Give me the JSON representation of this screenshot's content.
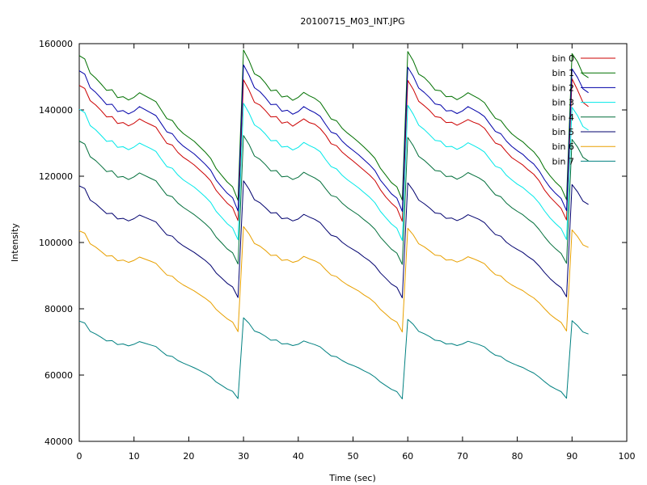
{
  "chart_data": {
    "type": "line",
    "title": "20100715_M03_INT.JPG",
    "xlabel": "Time (sec)",
    "ylabel": "Intensity",
    "xlim": [
      0,
      100
    ],
    "ylim": [
      40000,
      160000
    ],
    "xticks": [
      "0",
      "10",
      "20",
      "30",
      "40",
      "50",
      "60",
      "70",
      "80",
      "90",
      "100"
    ],
    "yticks": [
      "40000",
      "60000",
      "80000",
      "100000",
      "120000",
      "140000",
      "160000"
    ],
    "grid": false,
    "legend_position": "top-right",
    "x": [
      0,
      1,
      2,
      3,
      4,
      5,
      6,
      7,
      8,
      9,
      10,
      11,
      12,
      13,
      14,
      15,
      16,
      17,
      18,
      19,
      20,
      21,
      22,
      23,
      24,
      25,
      26,
      27,
      28,
      29,
      30,
      31,
      32,
      33,
      34,
      35,
      36,
      37,
      38,
      39,
      40,
      41,
      42,
      43,
      44,
      45,
      46,
      47,
      48,
      49,
      50,
      51,
      52,
      53,
      54,
      55,
      56,
      57,
      58,
      59,
      60,
      61,
      62,
      63,
      64,
      65,
      66,
      67,
      68,
      69,
      70,
      71,
      72,
      73,
      74,
      75,
      76,
      77,
      78,
      79,
      80,
      81,
      82,
      83,
      84,
      85,
      86,
      87,
      88,
      89,
      90,
      91,
      92,
      93
    ],
    "series": [
      {
        "name": "bin 0",
        "color": "#cc0000",
        "values": [
          147400,
          146500,
          142800,
          141500,
          139800,
          137900,
          138000,
          135900,
          136200,
          135200,
          136000,
          137300,
          136400,
          135600,
          134800,
          132300,
          129900,
          129400,
          127200,
          125700,
          124600,
          123400,
          121900,
          120400,
          118600,
          115700,
          113800,
          111900,
          110500,
          106600,
          149100,
          146000,
          142300,
          141500,
          139800,
          137900,
          138000,
          136000,
          136400,
          135100,
          136200,
          137300,
          136200,
          135700,
          134400,
          132400,
          129800,
          129200,
          127300,
          125900,
          124600,
          123200,
          121800,
          120400,
          118700,
          115900,
          113700,
          111900,
          110400,
          106400,
          148900,
          146200,
          142600,
          141300,
          139800,
          138000,
          137700,
          136200,
          136300,
          135400,
          136200,
          137100,
          136300,
          135700,
          134500,
          132200,
          130000,
          129400,
          127400,
          125600,
          124500,
          123400,
          121900,
          120600,
          118600,
          115800,
          113700,
          112000,
          110300,
          106800,
          149400,
          146000,
          142300,
          141000
        ]
      },
      {
        "name": "bin 1",
        "color": "#007000",
        "values": [
          156400,
          155400,
          151100,
          149600,
          147800,
          145900,
          146100,
          143700,
          144000,
          143000,
          143800,
          145200,
          144300,
          143400,
          142500,
          139900,
          137400,
          136800,
          134500,
          132900,
          131700,
          130500,
          128900,
          127300,
          125400,
          122300,
          120300,
          118300,
          116800,
          112700,
          158100,
          154900,
          150900,
          150000,
          148100,
          145800,
          146000,
          143900,
          144200,
          142900,
          143800,
          145300,
          144300,
          143500,
          142300,
          139800,
          137300,
          136700,
          134500,
          133000,
          131700,
          130300,
          128800,
          127200,
          125400,
          122400,
          120300,
          118100,
          116800,
          112800,
          157600,
          154800,
          150800,
          149800,
          148100,
          146000,
          145800,
          144000,
          144100,
          143100,
          144000,
          145200,
          144300,
          143400,
          142200,
          139700,
          137500,
          136800,
          134600,
          132800,
          131500,
          130400,
          128800,
          127400,
          125300,
          122300,
          120100,
          118200,
          116600,
          112900,
          157000,
          154500,
          150800,
          149700
        ]
      },
      {
        "name": "bin 2",
        "color": "#0000a8",
        "values": [
          151800,
          150800,
          146700,
          145300,
          143500,
          141600,
          141700,
          139500,
          139800,
          138800,
          139600,
          141000,
          140100,
          139200,
          138300,
          135800,
          133400,
          132800,
          130600,
          129100,
          127900,
          126700,
          125200,
          123600,
          121800,
          118800,
          116800,
          114900,
          113500,
          109500,
          153600,
          150500,
          146700,
          145500,
          143700,
          141600,
          141700,
          139600,
          139900,
          138700,
          139500,
          141000,
          140000,
          139200,
          138100,
          135600,
          133300,
          132700,
          130600,
          129100,
          127800,
          126500,
          125000,
          123500,
          121700,
          118800,
          116800,
          114700,
          113400,
          109400,
          152900,
          150200,
          146600,
          145300,
          143700,
          141800,
          141500,
          139700,
          139800,
          138900,
          139700,
          141000,
          140100,
          139200,
          138000,
          135700,
          133500,
          132800,
          130600,
          129000,
          127700,
          126600,
          125000,
          123700,
          121600,
          118900,
          116600,
          114800,
          113300,
          109600,
          152400,
          149800,
          146400,
          145200
        ]
      },
      {
        "name": "bin 3",
        "color": "#00e8e8",
        "values": [
          140200,
          139200,
          135300,
          134000,
          132300,
          130500,
          130700,
          128700,
          128900,
          128000,
          128800,
          130000,
          129200,
          128400,
          127500,
          125100,
          122900,
          122400,
          120400,
          118900,
          117800,
          116700,
          115300,
          113800,
          112100,
          109400,
          107600,
          105700,
          104400,
          100800,
          142000,
          139100,
          135500,
          134400,
          132700,
          130700,
          130800,
          128800,
          129000,
          127900,
          128700,
          130200,
          129300,
          128500,
          127400,
          125000,
          122900,
          122200,
          120300,
          118900,
          117700,
          116500,
          115100,
          113700,
          112000,
          109400,
          107500,
          105600,
          104300,
          100600,
          141400,
          138700,
          135400,
          134100,
          132500,
          130800,
          130600,
          128900,
          129000,
          128100,
          128900,
          130100,
          129300,
          128400,
          127300,
          125100,
          123000,
          122400,
          120300,
          118900,
          117600,
          116600,
          115200,
          113800,
          111900,
          109500,
          107400,
          105700,
          104200,
          100900,
          140800,
          138300,
          135000,
          133900
        ]
      },
      {
        "name": "bin 4",
        "color": "#006e3a",
        "values": [
          130600,
          129700,
          125900,
          124700,
          123100,
          121400,
          121600,
          119700,
          119900,
          119000,
          119800,
          121000,
          120200,
          119400,
          118600,
          116400,
          114300,
          113800,
          111900,
          110600,
          109500,
          108400,
          107100,
          105700,
          104100,
          101600,
          99900,
          98100,
          96900,
          93500,
          132300,
          129600,
          126100,
          125100,
          123500,
          121600,
          121700,
          119800,
          120000,
          119000,
          119700,
          121200,
          120300,
          119500,
          118400,
          116200,
          114200,
          113700,
          111900,
          110500,
          109400,
          108300,
          106900,
          105600,
          104000,
          101600,
          99800,
          98000,
          96800,
          93400,
          131700,
          129200,
          126000,
          124800,
          123300,
          121700,
          121500,
          119900,
          120000,
          119100,
          119900,
          121100,
          120300,
          119500,
          118400,
          116300,
          114400,
          113800,
          111900,
          110500,
          109400,
          108400,
          107000,
          105800,
          103900,
          101700,
          99700,
          98100,
          96700,
          93700,
          131100,
          128800,
          125700,
          124600
        ]
      },
      {
        "name": "bin 5",
        "color": "#00006e",
        "values": [
          117100,
          116300,
          112800,
          111700,
          110200,
          108700,
          108800,
          107100,
          107300,
          106500,
          107200,
          108300,
          107600,
          106900,
          106200,
          104200,
          102300,
          101900,
          100200,
          99000,
          98000,
          97000,
          95800,
          94600,
          93100,
          90800,
          89300,
          87700,
          86600,
          83400,
          118600,
          116100,
          112900,
          112000,
          110500,
          108900,
          109000,
          107200,
          107400,
          106500,
          107100,
          108500,
          107700,
          107000,
          106000,
          104000,
          102200,
          101700,
          100100,
          98900,
          97900,
          96900,
          95600,
          94500,
          93000,
          90800,
          89200,
          87500,
          86500,
          83300,
          118000,
          115700,
          112800,
          111700,
          110400,
          108900,
          108700,
          107300,
          107400,
          106600,
          107300,
          108400,
          107700,
          107000,
          106000,
          104100,
          102400,
          101900,
          100100,
          98900,
          97900,
          97000,
          95700,
          94600,
          92900,
          90900,
          89100,
          87600,
          86400,
          83600,
          117500,
          115300,
          112500,
          111500
        ]
      },
      {
        "name": "bin 6",
        "color": "#e8a000",
        "values": [
          103500,
          102800,
          99600,
          98600,
          97300,
          95900,
          96000,
          94500,
          94700,
          94000,
          94600,
          95600,
          95000,
          94400,
          93700,
          91900,
          90200,
          89800,
          88300,
          87200,
          86300,
          85400,
          84300,
          83200,
          81900,
          79800,
          78400,
          77000,
          76000,
          73100,
          104800,
          102600,
          99700,
          98900,
          97600,
          96100,
          96200,
          94600,
          94800,
          94000,
          94500,
          95800,
          95100,
          94500,
          93600,
          91800,
          90200,
          89700,
          88300,
          87200,
          86300,
          85400,
          84200,
          83200,
          81800,
          79800,
          78400,
          76900,
          76000,
          73000,
          104300,
          102300,
          99600,
          98700,
          97500,
          96200,
          96000,
          94700,
          94800,
          94100,
          94700,
          95700,
          95100,
          94400,
          93600,
          91800,
          90300,
          89900,
          88300,
          87200,
          86300,
          85500,
          84300,
          83300,
          81800,
          80000,
          78300,
          77000,
          75900,
          73300,
          103800,
          101800,
          99300,
          98500
        ]
      },
      {
        "name": "bin 7",
        "color": "#008080",
        "values": [
          76300,
          75700,
          73200,
          72400,
          71400,
          70300,
          70400,
          69200,
          69400,
          68800,
          69300,
          70100,
          69600,
          69100,
          68600,
          67200,
          65900,
          65600,
          64400,
          63600,
          62900,
          62200,
          61400,
          60500,
          59500,
          57900,
          56900,
          55800,
          55100,
          52900,
          77300,
          75600,
          73300,
          72700,
          71700,
          70500,
          70600,
          69400,
          69500,
          68900,
          69300,
          70300,
          69700,
          69200,
          68500,
          67100,
          65800,
          65500,
          64400,
          63500,
          62900,
          62200,
          61300,
          60500,
          59400,
          57900,
          56800,
          55700,
          55000,
          52800,
          76800,
          75300,
          73200,
          72500,
          71600,
          70500,
          70300,
          69400,
          69500,
          68900,
          69400,
          70200,
          69700,
          69200,
          68500,
          67100,
          66000,
          65600,
          64400,
          63600,
          62900,
          62300,
          61400,
          60600,
          59400,
          58000,
          56700,
          55800,
          55000,
          53000,
          76400,
          74900,
          73000,
          72400
        ]
      }
    ]
  }
}
